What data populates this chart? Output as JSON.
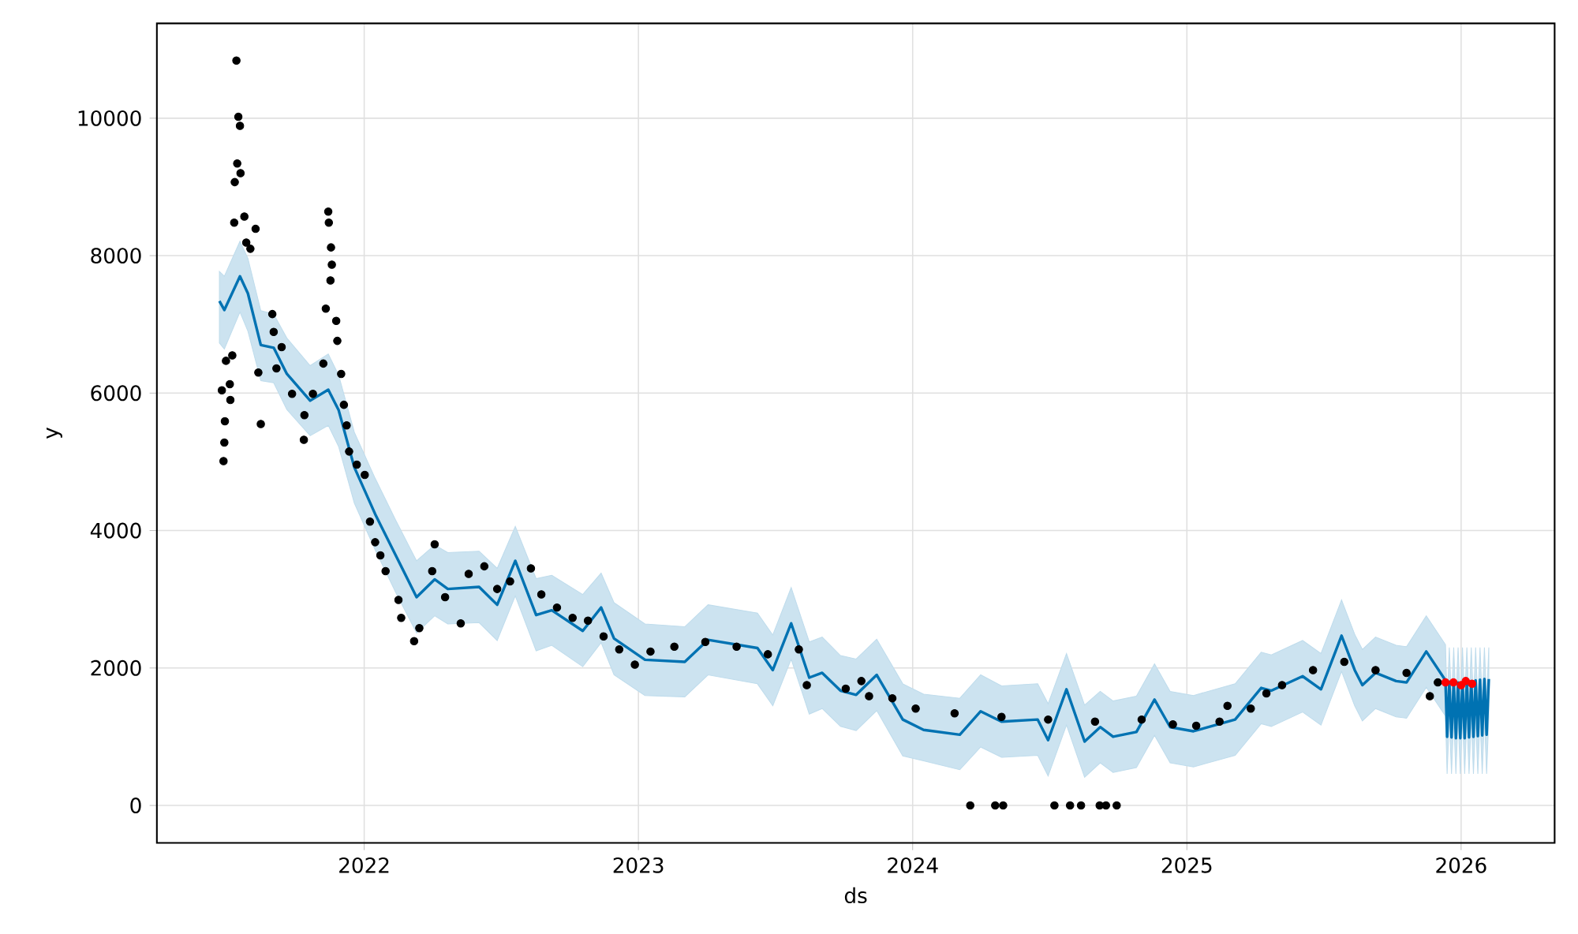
{
  "chart_data": {
    "type": "line",
    "xlabel": "ds",
    "ylabel": "y",
    "xlim": [
      2021.244,
      2026.341
    ],
    "ylim": [
      -544,
      11380
    ],
    "xticks": [
      2022,
      2023,
      2024,
      2025,
      2026
    ],
    "yticks": [
      0,
      2000,
      4000,
      6000,
      8000,
      10000
    ],
    "grid": true,
    "series": [
      {
        "type": "scatter",
        "color": "#000000",
        "marker": "circle",
        "x": [
          2021.534,
          2021.541,
          2021.547,
          2021.537,
          2021.549,
          2021.528,
          2021.563,
          2021.526,
          2021.604,
          2021.57,
          2021.585,
          2021.869,
          2021.871,
          2021.879,
          2021.882,
          2021.877,
          2021.86,
          2021.898,
          2021.902,
          2021.481,
          2021.487,
          2021.49,
          2021.492,
          2021.496,
          2021.519,
          2021.51,
          2021.512,
          2021.623,
          2021.614,
          2021.665,
          2021.67,
          2021.699,
          2021.68,
          2021.737,
          2021.78,
          2021.782,
          2021.813,
          2021.851,
          2021.916,
          2021.926,
          2021.936,
          2021.945,
          2021.973,
          2022.002,
          2022.021,
          2022.04,
          2022.059,
          2022.078,
          2022.125,
          2022.135,
          2022.182,
          2022.201,
          2022.257,
          2022.248,
          2022.295,
          2022.352,
          2022.381,
          2022.438,
          2022.485,
          2022.532,
          2022.608,
          2022.646,
          2022.703,
          2022.76,
          2022.816,
          2022.873,
          2022.93,
          2022.987,
          2023.044,
          2023.131,
          2023.244,
          2023.358,
          2023.472,
          2023.585,
          2023.614,
          2023.756,
          2023.813,
          2023.841,
          2023.926,
          2024.011,
          2024.153,
          2024.324,
          2024.494,
          2024.665,
          2024.835,
          2024.949,
          2025.034,
          2025.119,
          2025.148,
          2025.233,
          2025.29,
          2025.347,
          2025.46,
          2025.574,
          2025.688,
          2025.801,
          2025.886,
          2025.915,
          2024.21,
          2024.301,
          2024.33,
          2024.517,
          2024.574,
          2024.614,
          2024.682,
          2024.705,
          2024.744
        ],
        "values": [
          10840,
          10020,
          9890,
          9340,
          9200,
          9070,
          8570,
          8480,
          8390,
          8190,
          8100,
          8640,
          8480,
          8120,
          7870,
          7640,
          7230,
          7050,
          6760,
          6040,
          5010,
          5280,
          5590,
          6470,
          6550,
          6130,
          5900,
          5550,
          6300,
          7150,
          6890,
          6670,
          6360,
          5990,
          5320,
          5680,
          5990,
          6430,
          6280,
          5830,
          5530,
          5150,
          4960,
          4810,
          4130,
          3830,
          3640,
          3410,
          2990,
          2730,
          2390,
          2580,
          3800,
          3410,
          3030,
          2650,
          3370,
          3480,
          3150,
          3260,
          3450,
          3070,
          2880,
          2730,
          2690,
          2460,
          2270,
          2050,
          2240,
          2310,
          2380,
          2310,
          2200,
          2270,
          1750,
          1700,
          1810,
          1590,
          1560,
          1410,
          1340,
          1290,
          1250,
          1220,
          1250,
          1180,
          1160,
          1220,
          1450,
          1410,
          1630,
          1750,
          1970,
          2090,
          1970,
          1930,
          1590,
          1790,
          0,
          0,
          0,
          0,
          0,
          0,
          0,
          0,
          0
        ]
      },
      {
        "color": "#0072b2",
        "marker": "none",
        "line_style": "solid",
        "x": [
          2021.472,
          2021.49,
          2021.547,
          2021.576,
          2021.623,
          2021.67,
          2021.718,
          2021.803,
          2021.869,
          2021.907,
          2021.964,
          2022.04,
          2022.115,
          2022.191,
          2022.257,
          2022.305,
          2022.419,
          2022.485,
          2022.551,
          2022.627,
          2022.684,
          2022.797,
          2022.864,
          2022.911,
          2023.024,
          2023.169,
          2023.254,
          2023.434,
          2023.49,
          2023.557,
          2023.623,
          2023.67,
          2023.737,
          2023.794,
          2023.869,
          2023.964,
          2024.04,
          2024.172,
          2024.248,
          2024.324,
          2024.456,
          2024.494,
          2024.561,
          2024.627,
          2024.684,
          2024.731,
          2024.816,
          2024.882,
          2024.939,
          2025.024,
          2025.176,
          2025.271,
          2025.308,
          2025.422,
          2025.489,
          2025.564,
          2025.612,
          2025.64,
          2025.688,
          2025.763,
          2025.801,
          2025.873,
          2025.943,
          2025.949,
          2025.957,
          2025.965,
          2025.973,
          2025.981,
          2025.989,
          2025.997,
          2026.005,
          2026.013,
          2026.021,
          2026.029,
          2026.037,
          2026.045,
          2026.053,
          2026.061,
          2026.069,
          2026.077,
          2026.085,
          2026.093,
          2026.101
        ],
        "values": [
          7340,
          7210,
          7700,
          7450,
          6700,
          6660,
          6280,
          5890,
          6050,
          5750,
          4920,
          4240,
          3640,
          3030,
          3290,
          3150,
          3180,
          2920,
          3560,
          2770,
          2840,
          2540,
          2880,
          2430,
          2120,
          2090,
          2410,
          2290,
          1970,
          2650,
          1860,
          1930,
          1670,
          1610,
          1900,
          1250,
          1100,
          1030,
          1370,
          1220,
          1250,
          950,
          1690,
          930,
          1140,
          1000,
          1070,
          1540,
          1140,
          1080,
          1250,
          1710,
          1670,
          1880,
          1690,
          2470,
          1970,
          1750,
          1930,
          1810,
          1790,
          2240,
          1820,
          1000,
          1800,
          990,
          1790,
          980,
          1790,
          980,
          1790,
          980,
          1800,
          990,
          1810,
          1000,
          1820,
          1010,
          1830,
          1020,
          1840,
          1030,
          1840
        ],
        "upper": [
          7770,
          7700,
          8210,
          7960,
          7200,
          7150,
          6800,
          6400,
          6570,
          6260,
          5430,
          4760,
          4150,
          3560,
          3790,
          3680,
          3700,
          3450,
          4060,
          3300,
          3350,
          3070,
          3380,
          2950,
          2640,
          2600,
          2920,
          2800,
          2480,
          3170,
          2380,
          2450,
          2180,
          2130,
          2420,
          1770,
          1620,
          1560,
          1900,
          1740,
          1770,
          1480,
          2210,
          1460,
          1660,
          1520,
          1590,
          2060,
          1660,
          1600,
          1770,
          2230,
          2190,
          2400,
          2210,
          2990,
          2490,
          2270,
          2450,
          2330,
          2310,
          2760,
          2340,
          1500,
          2300,
          1500,
          2300,
          1500,
          2300,
          1500,
          2300,
          1500,
          2300,
          1500,
          2300,
          1500,
          2300,
          1500,
          2300,
          1500,
          2300,
          1500,
          2300
        ],
        "lower": [
          6730,
          6640,
          7180,
          6900,
          6180,
          6150,
          5760,
          5380,
          5530,
          5220,
          4400,
          3720,
          3100,
          2510,
          2760,
          2640,
          2660,
          2400,
          3050,
          2250,
          2330,
          2020,
          2370,
          1900,
          1600,
          1580,
          1900,
          1770,
          1450,
          2130,
          1330,
          1410,
          1150,
          1090,
          1380,
          720,
          650,
          520,
          850,
          700,
          730,
          430,
          1170,
          410,
          620,
          480,
          550,
          1020,
          620,
          560,
          730,
          1190,
          1150,
          1360,
          1170,
          1950,
          1450,
          1230,
          1410,
          1290,
          1270,
          1720,
          1300,
          460,
          1280,
          460,
          1280,
          460,
          1280,
          460,
          1280,
          460,
          1280,
          460,
          1280,
          460,
          1280,
          460,
          1280,
          460,
          1280,
          460,
          1280
        ]
      },
      {
        "type": "scatter",
        "color": "#ff0000",
        "marker": "circle",
        "x": [
          2025.943,
          2025.972,
          2026.0,
          2026.017,
          2026.04
        ],
        "values": [
          1790,
          1790,
          1750,
          1810,
          1770
        ]
      }
    ]
  }
}
